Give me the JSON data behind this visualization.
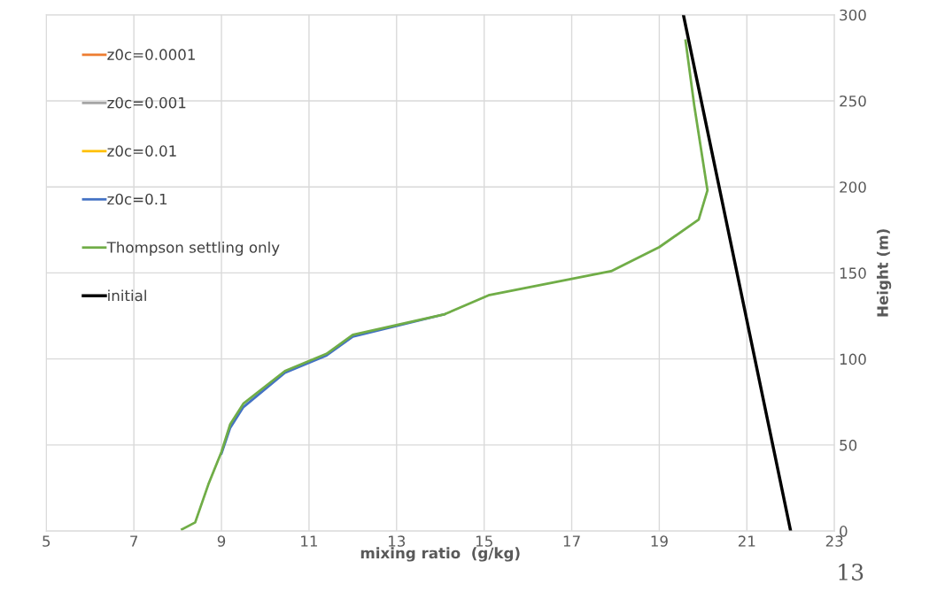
{
  "chart_data": {
    "type": "line",
    "xlabel": "mixing ratio  (g/kg)",
    "ylabel": "Height (m)",
    "xlim": [
      5,
      23
    ],
    "xticks": [
      5,
      7,
      9,
      11,
      13,
      15,
      17,
      19,
      21,
      23
    ],
    "ylim": [
      0,
      300
    ],
    "yticks": [
      0,
      50,
      100,
      150,
      200,
      250,
      300
    ],
    "grid": true,
    "legend": "top left",
    "marker": "none",
    "line_style": "solid",
    "annotations": [
      "13"
    ],
    "series": [
      {
        "name": "z0c=0.0001",
        "color": "#ed7d31"
      },
      {
        "name": "z0c=0.001",
        "color": "#a5a5a5"
      },
      {
        "name": "z0c=0.01",
        "color": "#ffc000"
      },
      {
        "name": "z0c=0.1",
        "color": "#4472c4",
        "x": [
          9.0,
          9.2,
          9.5,
          10.45,
          11.4,
          12.0,
          14.1
        ],
        "values": [
          45,
          60,
          72,
          92,
          102,
          113,
          126
        ]
      },
      {
        "name": "Thompson settling only",
        "color": "#70ad47",
        "x": [
          8.1,
          8.4,
          8.7,
          9.0,
          9.2,
          9.5,
          10.45,
          11.4,
          12.0,
          14.1,
          15.1,
          17.9,
          19.0,
          19.9,
          20.1,
          19.8,
          19.6
        ],
        "values": [
          1,
          5,
          27,
          46,
          62,
          74,
          93,
          103,
          114,
          126,
          137,
          151,
          165,
          181,
          198,
          247,
          285
        ]
      },
      {
        "name": "initial",
        "color": "#000000",
        "x": [
          19.55,
          22.0
        ],
        "values": [
          300,
          0
        ]
      }
    ]
  }
}
